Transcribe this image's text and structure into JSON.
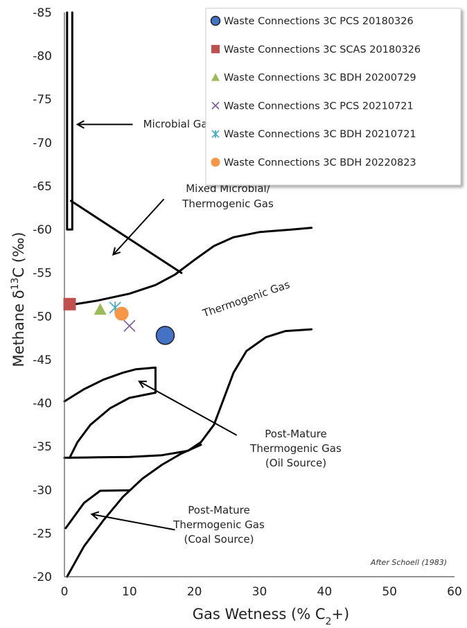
{
  "chart_data": {
    "type": "scatter",
    "title": "",
    "xlabel": "Gas Wetness (% C",
    "xlabel_sub": "2",
    "xlabel_suffix": "+)",
    "ylabel_prefix": "Methane  δ",
    "ylabel_sup": "13",
    "ylabel_suffix": "C (‰)",
    "xlim": [
      0,
      60
    ],
    "ylim": [
      -20,
      -85
    ],
    "x_ticks": [
      0,
      10,
      20,
      30,
      40,
      50,
      60
    ],
    "y_ticks": [
      -85,
      -80,
      -75,
      -70,
      -65,
      -60,
      -55,
      -50,
      -45,
      -40,
      -35,
      -30,
      -25,
      -20
    ],
    "grid": false,
    "legend_position": "top-right",
    "series": [
      {
        "name": "Waste Connections 3C PCS 20180326",
        "marker": "circle",
        "color": "#4472C4",
        "x": [
          15.5
        ],
        "y": [
          -47.8
        ],
        "size": 13
      },
      {
        "name": "Waste Connections 3C SCAS 20180326",
        "marker": "square",
        "color": "#C0504D",
        "x": [
          0.8
        ],
        "y": [
          -51.4
        ],
        "size": 9
      },
      {
        "name": "Waste Connections 3C BDH 20200729",
        "marker": "triangle",
        "color": "#9BBB59",
        "x": [
          5.5
        ],
        "y": [
          -50.8
        ],
        "size": 9
      },
      {
        "name": "Waste Connections 3C PCS 20210721",
        "marker": "x",
        "color": "#8064A2",
        "x": [
          10.0
        ],
        "y": [
          -48.9
        ],
        "size": 8
      },
      {
        "name": "Waste Connections 3C BDH 20210721",
        "marker": "star",
        "color": "#4BACC6",
        "x": [
          7.8
        ],
        "y": [
          -51.0
        ],
        "size": 8
      },
      {
        "name": "Waste Connections 3C BDH 20220823",
        "marker": "circle",
        "color": "#F79646",
        "x": [
          8.8
        ],
        "y": [
          -50.3
        ],
        "size": 10
      }
    ],
    "region_labels": [
      {
        "id": "microbial",
        "text": [
          "Microbial Gas"
        ]
      },
      {
        "id": "mixed",
        "text": [
          "Mixed Microbial/",
          "Thermogenic Gas"
        ]
      },
      {
        "id": "thermogenic",
        "text": [
          "Thermogenic Gas"
        ]
      },
      {
        "id": "post_oil",
        "text": [
          "Post-Mature",
          "Thermogenic Gas",
          "(Oil Source)"
        ]
      },
      {
        "id": "post_coal",
        "text": [
          "Post-Mature",
          "Thermogenic Gas",
          "(Coal Source)"
        ]
      }
    ],
    "credit": "After Schoell (1983)",
    "field_boundaries": [
      {
        "id": "microbial-box",
        "points": [
          [
            0.4,
            -85
          ],
          [
            0.4,
            -60
          ],
          [
            1.2,
            -60
          ],
          [
            1.2,
            -85
          ]
        ]
      },
      {
        "id": "mixed-upper",
        "points": [
          [
            1.0,
            -63.3
          ],
          [
            18,
            -55
          ]
        ]
      },
      {
        "id": "thermogenic-upper",
        "points": [
          [
            0,
            -51.2
          ],
          [
            5,
            -51.8
          ],
          [
            10,
            -52.6
          ],
          [
            14,
            -53.6
          ],
          [
            17,
            -54.8
          ],
          [
            20,
            -56.5
          ],
          [
            23,
            -58.1
          ],
          [
            26,
            -59.1
          ],
          [
            30,
            -59.7
          ],
          [
            35,
            -60.0
          ],
          [
            38,
            -60.2
          ]
        ]
      },
      {
        "id": "thermogenic-lower",
        "points": [
          [
            0,
            -33.7
          ],
          [
            5,
            -33.75
          ],
          [
            10,
            -33.8
          ],
          [
            15,
            -34
          ],
          [
            19,
            -34.5
          ],
          [
            21,
            -35.5
          ],
          [
            23,
            -37.5
          ],
          [
            24.5,
            -40.5
          ],
          [
            26,
            -43.5
          ],
          [
            28,
            -46
          ],
          [
            31,
            -47.6
          ],
          [
            34,
            -48.3
          ],
          [
            38,
            -48.5
          ]
        ]
      },
      {
        "id": "oil-outer",
        "points": [
          [
            0,
            -40.2
          ],
          [
            3,
            -41.6
          ],
          [
            6,
            -42.7
          ],
          [
            9,
            -43.5
          ],
          [
            11,
            -43.9
          ],
          [
            14,
            -44.1
          ],
          [
            14,
            -41.2
          ]
        ]
      },
      {
        "id": "oil-inner",
        "points": [
          [
            0.8,
            -33.7
          ],
          [
            2,
            -35.5
          ],
          [
            4,
            -37.5
          ],
          [
            7,
            -39.4
          ],
          [
            10,
            -40.6
          ],
          [
            14,
            -41.2
          ]
        ]
      },
      {
        "id": "coal-lower",
        "points": [
          [
            0.4,
            -20
          ],
          [
            3,
            -23.5
          ],
          [
            6,
            -26.5
          ],
          [
            9,
            -29.2
          ],
          [
            12,
            -31.3
          ],
          [
            15,
            -32.9
          ],
          [
            18,
            -34.2
          ],
          [
            21,
            -35.2
          ]
        ]
      },
      {
        "id": "coal-upper",
        "points": [
          [
            0.2,
            -25.6
          ],
          [
            3,
            -28.5
          ],
          [
            5.5,
            -29.9
          ],
          [
            10,
            -29.95
          ]
        ]
      }
    ],
    "arrows": [
      {
        "id": "microbial-arrow",
        "from": [
          10.5,
          -72.1
        ],
        "to": [
          2.0,
          -72.1
        ]
      },
      {
        "id": "mixed-arrow",
        "from": [
          15.3,
          -63.5
        ],
        "to": [
          7.5,
          -57.1
        ]
      },
      {
        "id": "oil-arrow",
        "from": [
          26.5,
          -36.3
        ],
        "to": [
          11.5,
          -42.5
        ]
      },
      {
        "id": "coal-arrow",
        "from": [
          17,
          -25.4
        ],
        "to": [
          4.2,
          -27.2
        ]
      }
    ]
  }
}
